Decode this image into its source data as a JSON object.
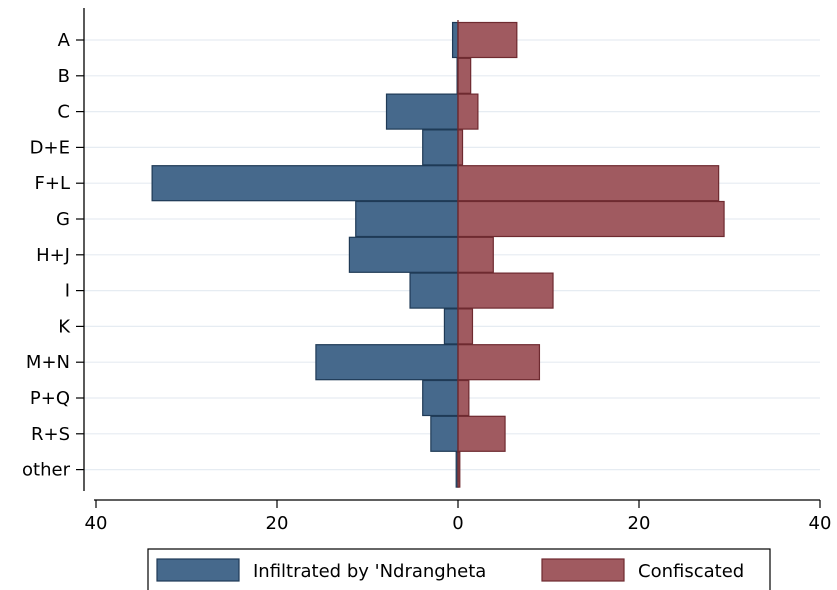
{
  "chart_data": {
    "type": "bar",
    "orientation": "horizontal",
    "categories": [
      "A",
      "B",
      "C",
      "D+E",
      "F+L",
      "G",
      "H+J",
      "I",
      "K",
      "M+N",
      "P+Q",
      "R+S",
      "other"
    ],
    "series": [
      {
        "name": "Infiltrated by 'Ndrangheta",
        "values": [
          -0.6,
          -0.1,
          -7.9,
          -3.9,
          -33.8,
          -11.3,
          -12.0,
          -5.3,
          -1.5,
          -15.7,
          -3.9,
          -3.0,
          -0.2
        ],
        "color": "#46698c"
      },
      {
        "name": "Confiscated",
        "values": [
          6.5,
          1.4,
          2.2,
          0.5,
          28.8,
          29.4,
          3.9,
          10.5,
          1.6,
          9.0,
          1.2,
          5.2,
          0.2
        ],
        "color": "#a05a60"
      }
    ],
    "xlim": [
      -40,
      40
    ],
    "xticks": [
      -40,
      -20,
      0,
      20,
      40
    ],
    "xtick_labels": [
      "40",
      "20",
      "0",
      "20",
      "40"
    ],
    "grid": true,
    "legend_position": "bottom"
  }
}
